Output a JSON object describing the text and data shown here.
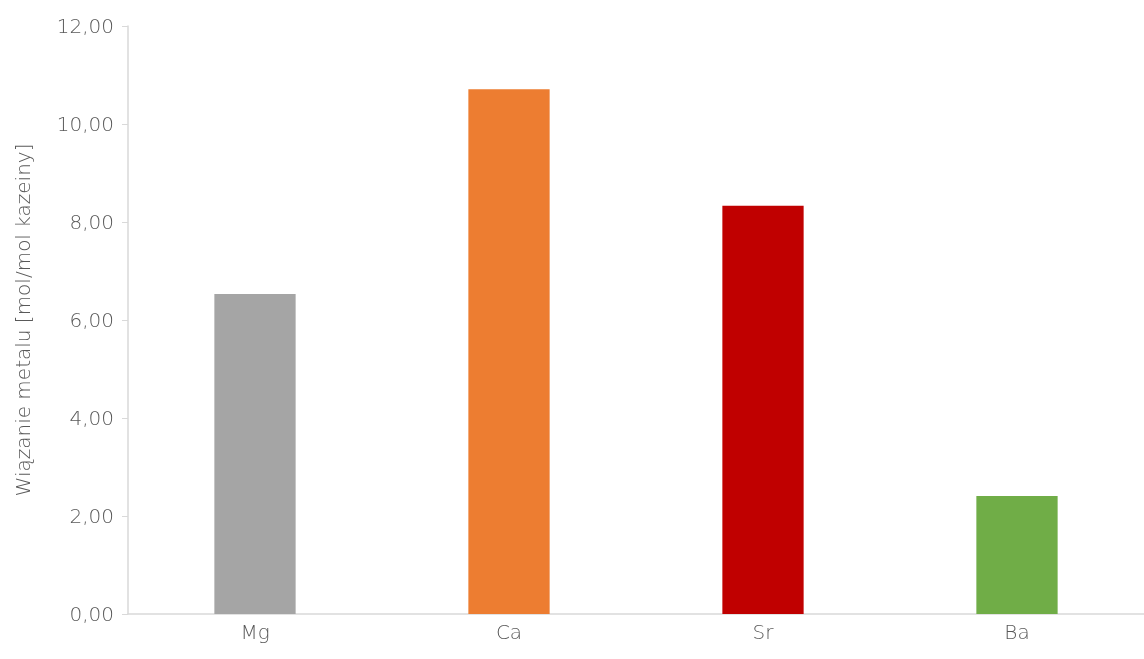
{
  "chart_data": {
    "type": "bar",
    "ylabel": "Wiązanie metalu [mol/mol kazeiny]",
    "categories": [
      "Mg",
      "Ca",
      "Sr",
      "Ba"
    ],
    "values": [
      6.53,
      10.71,
      8.33,
      2.41
    ],
    "colors": [
      "#a5a5a5",
      "#ed7d31",
      "#c00000",
      "#70ad47"
    ],
    "ylim": [
      0,
      12
    ],
    "yticks": [
      {
        "value": 0,
        "label": "0,00"
      },
      {
        "value": 2,
        "label": "2,00"
      },
      {
        "value": 4,
        "label": "4,00"
      },
      {
        "value": 6,
        "label": "6,00"
      },
      {
        "value": 8,
        "label": "8,00"
      },
      {
        "value": 10,
        "label": "10,00"
      },
      {
        "value": 12,
        "label": "12,00"
      }
    ],
    "grid": false
  }
}
